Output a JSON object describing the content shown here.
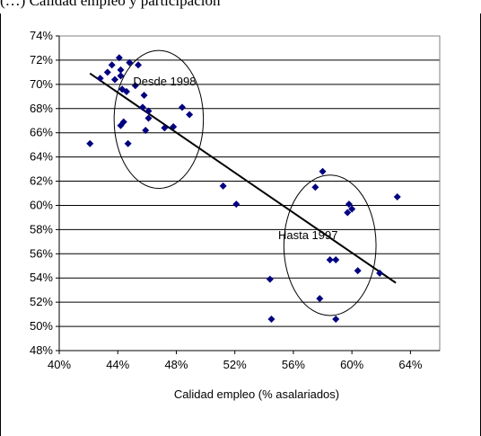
{
  "caption": "(…) Calidad empleo y participación",
  "chart_data": {
    "type": "scatter",
    "xlabel": "Calidad empleo (% asalariados)",
    "ylabel": "",
    "xlim": [
      0.4,
      0.66
    ],
    "ylim": [
      0.48,
      0.74
    ],
    "x_ticks": [
      "40%",
      "44%",
      "48%",
      "52%",
      "56%",
      "60%",
      "64%"
    ],
    "y_ticks": [
      "48%",
      "50%",
      "52%",
      "54%",
      "56%",
      "58%",
      "60%",
      "62%",
      "64%",
      "66%",
      "68%",
      "70%",
      "72%",
      "74%"
    ],
    "grid": "horizontal",
    "legend": "none",
    "marker_color": "#000080",
    "series": [
      {
        "points": [
          [
            0.421,
            0.651
          ],
          [
            0.428,
            0.705
          ],
          [
            0.433,
            0.71
          ],
          [
            0.436,
            0.716
          ],
          [
            0.438,
            0.704
          ],
          [
            0.441,
            0.722
          ],
          [
            0.442,
            0.712
          ],
          [
            0.442,
            0.707
          ],
          [
            0.443,
            0.696
          ],
          [
            0.442,
            0.666
          ],
          [
            0.444,
            0.669
          ],
          [
            0.446,
            0.694
          ],
          [
            0.447,
            0.651
          ],
          [
            0.448,
            0.718
          ],
          [
            0.452,
            0.699
          ],
          [
            0.454,
            0.716
          ],
          [
            0.457,
            0.681
          ],
          [
            0.458,
            0.691
          ],
          [
            0.459,
            0.662
          ],
          [
            0.461,
            0.678
          ],
          [
            0.461,
            0.672
          ],
          [
            0.472,
            0.664
          ],
          [
            0.478,
            0.665
          ],
          [
            0.484,
            0.681
          ],
          [
            0.489,
            0.675
          ],
          [
            0.512,
            0.616
          ],
          [
            0.521,
            0.601
          ],
          [
            0.544,
            0.539
          ],
          [
            0.545,
            0.506
          ],
          [
            0.575,
            0.615
          ],
          [
            0.578,
            0.523
          ],
          [
            0.58,
            0.628
          ],
          [
            0.585,
            0.555
          ],
          [
            0.589,
            0.555
          ],
          [
            0.589,
            0.506
          ],
          [
            0.597,
            0.594
          ],
          [
            0.598,
            0.601
          ],
          [
            0.6,
            0.597
          ],
          [
            0.604,
            0.546
          ],
          [
            0.619,
            0.544
          ],
          [
            0.631,
            0.607
          ]
        ]
      }
    ],
    "trendline": {
      "x": [
        0.421,
        0.63
      ],
      "y": [
        0.709,
        0.536
      ]
    },
    "groups": [
      {
        "label": "Desde 1998",
        "center": [
          0.468,
          0.671
        ],
        "radius_x": 0.0305,
        "radius_y": 0.057
      },
      {
        "label": "Hasta 1997",
        "center": [
          0.585,
          0.567
        ],
        "radius_x": 0.0315,
        "radius_y": 0.058
      }
    ],
    "annotations": [
      {
        "text": "Desde 1998",
        "x": 0.472,
        "y": 0.699
      },
      {
        "text": "Hasta 1997",
        "x": 0.57,
        "y": 0.572
      }
    ]
  }
}
